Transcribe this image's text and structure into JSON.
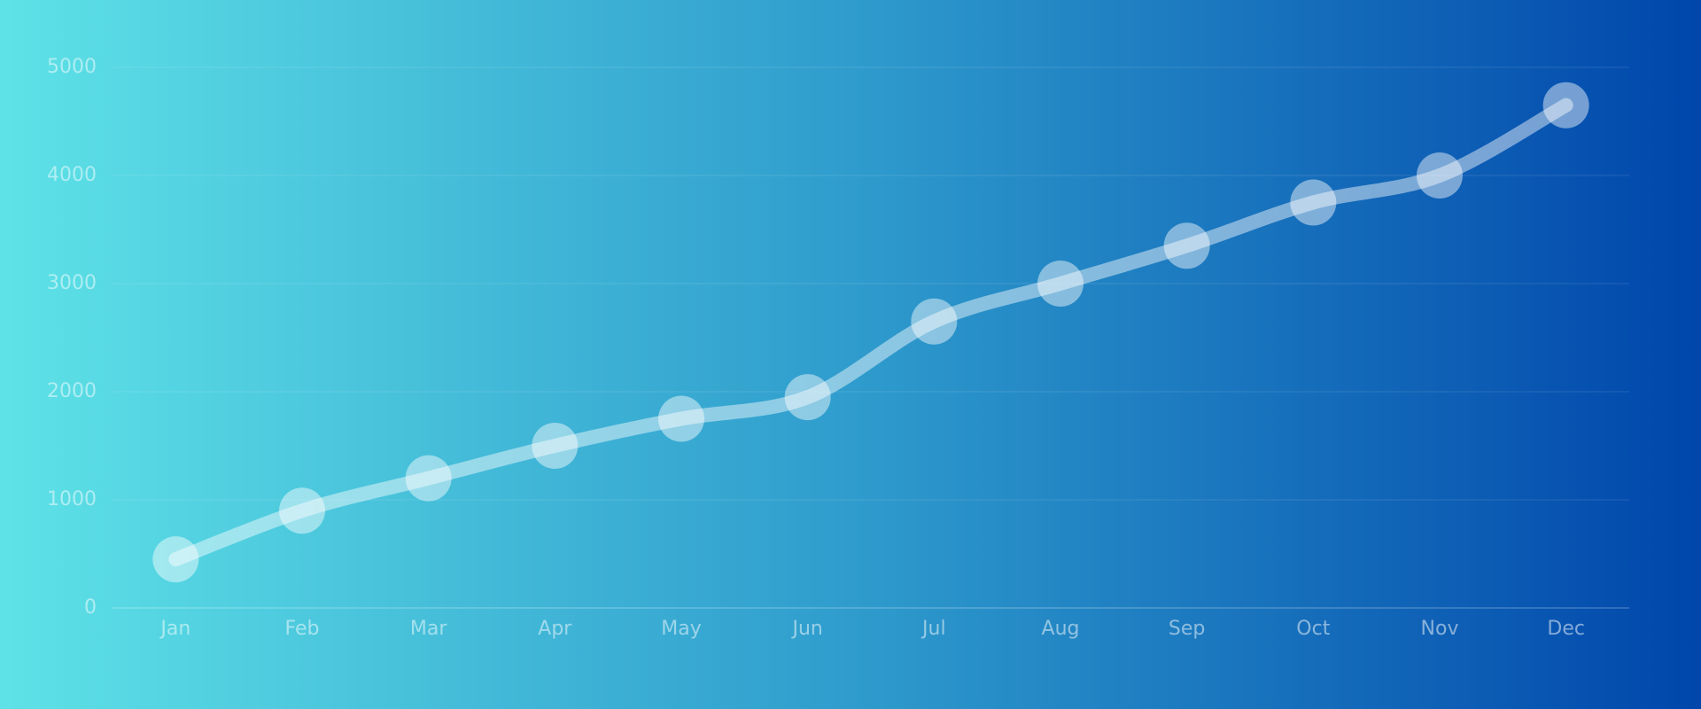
{
  "chart_data": {
    "type": "line",
    "categories": [
      "Jan",
      "Feb",
      "Mar",
      "Apr",
      "May",
      "Jun",
      "Jul",
      "Aug",
      "Sep",
      "Oct",
      "Nov",
      "Dec"
    ],
    "values": [
      450,
      900,
      1200,
      1500,
      1750,
      1950,
      2650,
      3000,
      3350,
      3750,
      4000,
      4650
    ],
    "color": "#ffffff",
    "ylim": [
      0,
      5000
    ],
    "yticks": [
      0,
      1000,
      2000,
      3000,
      4000,
      5000
    ],
    "grid": true
  }
}
